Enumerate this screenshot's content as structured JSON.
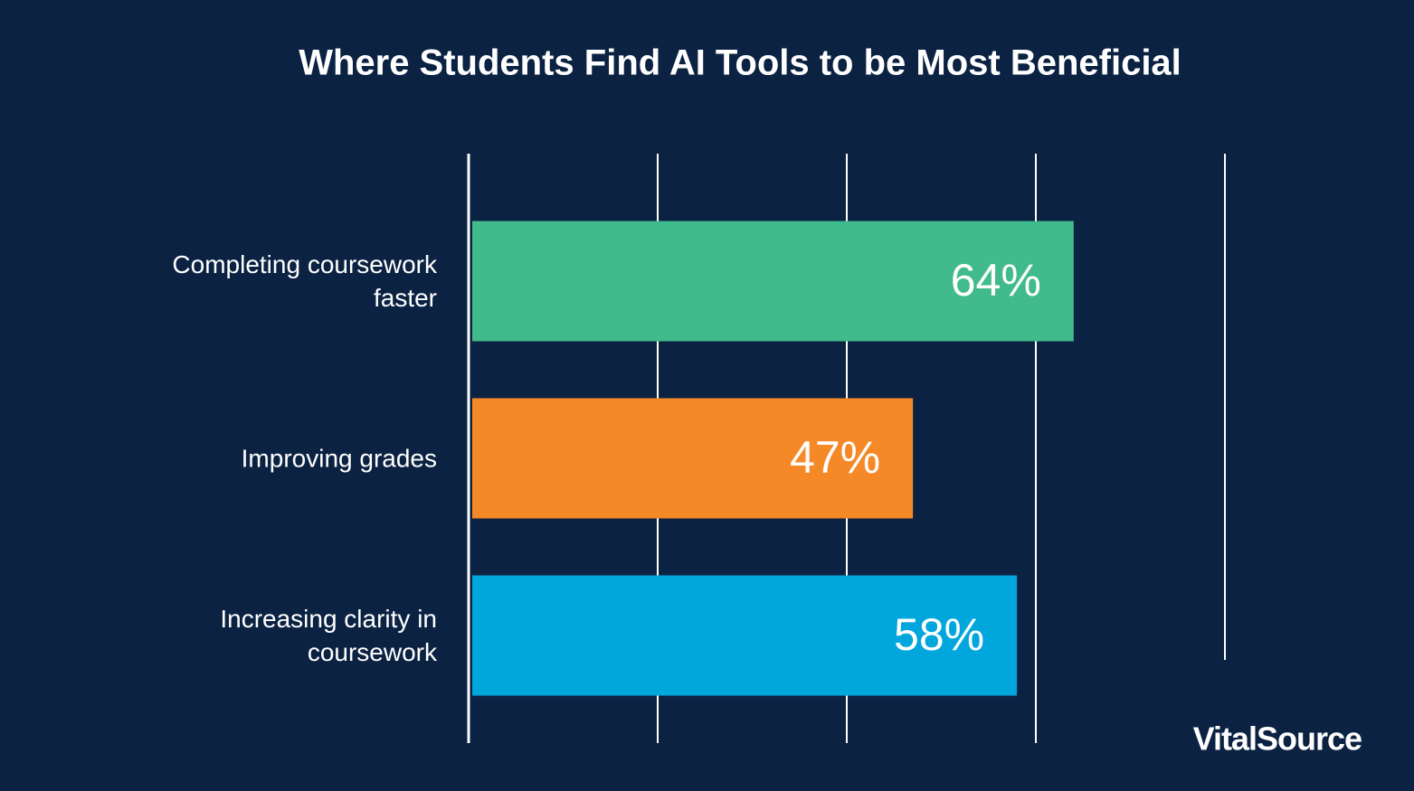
{
  "chart_data": {
    "type": "hbar",
    "title": "Where Students Find AI Tools to be Most Beneficial",
    "categories": [
      "Completing coursework faster",
      "Improving grades",
      "Increasing clarity in coursework"
    ],
    "values": [
      64,
      47,
      58
    ],
    "value_labels": [
      "64%",
      "47%",
      "58%"
    ],
    "colors": [
      "#41bb8c",
      "#f58927",
      "#00a6dc"
    ],
    "xlim": [
      0,
      80
    ],
    "xticks": [
      0,
      20,
      40,
      60,
      80
    ],
    "grid": true
  },
  "logo": "VitalSource"
}
